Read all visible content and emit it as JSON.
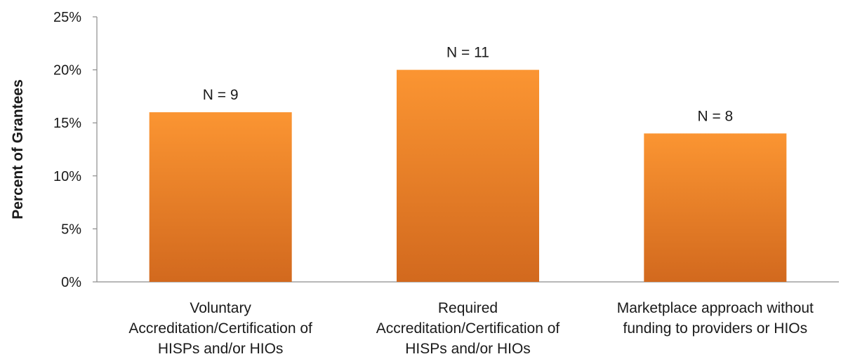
{
  "chart_data": {
    "type": "bar",
    "title": "",
    "xlabel": "",
    "ylabel": "Percent of Grantees",
    "ylim": [
      0,
      25
    ],
    "y_ticks": [
      0,
      5,
      10,
      15,
      20,
      25
    ],
    "y_tick_labels": [
      "0%",
      "5%",
      "10%",
      "15%",
      "20%",
      "25%"
    ],
    "categories": [
      [
        "Voluntary",
        "Accreditation/Certification of",
        "HISPs and/or HIOs"
      ],
      [
        "Required",
        "Accreditation/Certification of",
        "HISPs and/or HIOs"
      ],
      [
        "Marketplace approach without",
        "funding to providers or HIOs"
      ]
    ],
    "values": [
      16,
      20,
      14
    ],
    "data_labels": [
      "N = 9",
      "N = 11",
      "N = 8"
    ],
    "grid": false,
    "legend": "none",
    "colors": {
      "bar_top": "#fb9532",
      "bar_bottom": "#d2691e",
      "axis": "#8c8c8c"
    }
  }
}
